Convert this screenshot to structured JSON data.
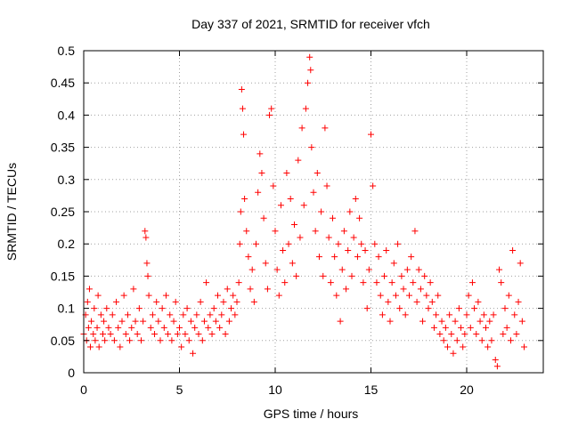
{
  "chart_data": {
    "type": "scatter",
    "title": "Day 337 of 2021, SRMTID for receiver vfch",
    "xlabel": "GPS time / hours",
    "ylabel": "SRMTID / TECUs",
    "xlim": [
      0,
      24
    ],
    "ylim": [
      0,
      0.5
    ],
    "x_ticks": [
      0,
      5,
      10,
      15,
      20
    ],
    "x_tick_labels": [
      "0",
      "5",
      "10",
      "15",
      "20"
    ],
    "y_ticks": [
      0,
      0.05,
      0.1,
      0.15,
      0.2,
      0.25,
      0.3,
      0.35,
      0.4,
      0.45,
      0.5
    ],
    "y_tick_labels": [
      "0",
      "0.05",
      "0.1",
      "0.15",
      "0.2",
      "0.25",
      "0.3",
      "0.35",
      "0.4",
      "0.45",
      "0.5"
    ],
    "grid": true,
    "marker": "+",
    "color": "#ff0000",
    "series": [
      {
        "name": "SRMTID",
        "points": [
          [
            0.0,
            0.06
          ],
          [
            0.1,
            0.09
          ],
          [
            0.15,
            0.05
          ],
          [
            0.2,
            0.11
          ],
          [
            0.25,
            0.07
          ],
          [
            0.3,
            0.13
          ],
          [
            0.35,
            0.04
          ],
          [
            0.4,
            0.08
          ],
          [
            0.5,
            0.06
          ],
          [
            0.55,
            0.1
          ],
          [
            0.6,
            0.05
          ],
          [
            0.7,
            0.07
          ],
          [
            0.75,
            0.12
          ],
          [
            0.8,
            0.04
          ],
          [
            0.9,
            0.09
          ],
          [
            1.0,
            0.06
          ],
          [
            1.05,
            0.08
          ],
          [
            1.1,
            0.05
          ],
          [
            1.2,
            0.1
          ],
          [
            1.3,
            0.07
          ],
          [
            1.4,
            0.06
          ],
          [
            1.5,
            0.09
          ],
          [
            1.6,
            0.05
          ],
          [
            1.7,
            0.11
          ],
          [
            1.8,
            0.07
          ],
          [
            1.9,
            0.04
          ],
          [
            2.0,
            0.08
          ],
          [
            2.1,
            0.12
          ],
          [
            2.2,
            0.06
          ],
          [
            2.3,
            0.09
          ],
          [
            2.4,
            0.05
          ],
          [
            2.5,
            0.07
          ],
          [
            2.6,
            0.13
          ],
          [
            2.7,
            0.08
          ],
          [
            2.8,
            0.06
          ],
          [
            2.9,
            0.1
          ],
          [
            3.0,
            0.05
          ],
          [
            3.1,
            0.08
          ],
          [
            3.2,
            0.22
          ],
          [
            3.25,
            0.21
          ],
          [
            3.3,
            0.17
          ],
          [
            3.35,
            0.15
          ],
          [
            3.4,
            0.12
          ],
          [
            3.5,
            0.07
          ],
          [
            3.6,
            0.09
          ],
          [
            3.7,
            0.06
          ],
          [
            3.8,
            0.11
          ],
          [
            3.9,
            0.08
          ],
          [
            4.0,
            0.05
          ],
          [
            4.1,
            0.1
          ],
          [
            4.2,
            0.07
          ],
          [
            4.3,
            0.12
          ],
          [
            4.4,
            0.06
          ],
          [
            4.5,
            0.09
          ],
          [
            4.6,
            0.05
          ],
          [
            4.7,
            0.08
          ],
          [
            4.8,
            0.11
          ],
          [
            4.9,
            0.06
          ],
          [
            5.0,
            0.07
          ],
          [
            5.1,
            0.04
          ],
          [
            5.2,
            0.09
          ],
          [
            5.3,
            0.06
          ],
          [
            5.4,
            0.1
          ],
          [
            5.5,
            0.05
          ],
          [
            5.6,
            0.08
          ],
          [
            5.7,
            0.03
          ],
          [
            5.8,
            0.07
          ],
          [
            5.9,
            0.09
          ],
          [
            6.0,
            0.06
          ],
          [
            6.1,
            0.11
          ],
          [
            6.2,
            0.05
          ],
          [
            6.3,
            0.08
          ],
          [
            6.4,
            0.14
          ],
          [
            6.5,
            0.07
          ],
          [
            6.6,
            0.09
          ],
          [
            6.7,
            0.06
          ],
          [
            6.8,
            0.1
          ],
          [
            6.9,
            0.08
          ],
          [
            7.0,
            0.12
          ],
          [
            7.1,
            0.07
          ],
          [
            7.2,
            0.09
          ],
          [
            7.3,
            0.11
          ],
          [
            7.4,
            0.06
          ],
          [
            7.5,
            0.13
          ],
          [
            7.6,
            0.08
          ],
          [
            7.7,
            0.1
          ],
          [
            7.8,
            0.12
          ],
          [
            7.9,
            0.09
          ],
          [
            8.0,
            0.11
          ],
          [
            8.1,
            0.14
          ],
          [
            8.15,
            0.2
          ],
          [
            8.2,
            0.25
          ],
          [
            8.25,
            0.44
          ],
          [
            8.3,
            0.41
          ],
          [
            8.35,
            0.37
          ],
          [
            8.4,
            0.27
          ],
          [
            8.5,
            0.22
          ],
          [
            8.6,
            0.18
          ],
          [
            8.7,
            0.13
          ],
          [
            8.8,
            0.16
          ],
          [
            8.9,
            0.11
          ],
          [
            9.0,
            0.2
          ],
          [
            9.1,
            0.28
          ],
          [
            9.2,
            0.34
          ],
          [
            9.3,
            0.31
          ],
          [
            9.4,
            0.24
          ],
          [
            9.5,
            0.17
          ],
          [
            9.6,
            0.13
          ],
          [
            9.7,
            0.4
          ],
          [
            9.8,
            0.41
          ],
          [
            9.9,
            0.29
          ],
          [
            10.0,
            0.22
          ],
          [
            10.1,
            0.16
          ],
          [
            10.2,
            0.12
          ],
          [
            10.3,
            0.26
          ],
          [
            10.4,
            0.19
          ],
          [
            10.5,
            0.14
          ],
          [
            10.6,
            0.31
          ],
          [
            10.7,
            0.2
          ],
          [
            10.8,
            0.27
          ],
          [
            10.9,
            0.17
          ],
          [
            11.0,
            0.23
          ],
          [
            11.1,
            0.15
          ],
          [
            11.2,
            0.33
          ],
          [
            11.3,
            0.21
          ],
          [
            11.4,
            0.38
          ],
          [
            11.5,
            0.26
          ],
          [
            11.6,
            0.41
          ],
          [
            11.7,
            0.45
          ],
          [
            11.8,
            0.49
          ],
          [
            11.85,
            0.47
          ],
          [
            11.9,
            0.35
          ],
          [
            12.0,
            0.28
          ],
          [
            12.1,
            0.22
          ],
          [
            12.2,
            0.31
          ],
          [
            12.3,
            0.18
          ],
          [
            12.4,
            0.25
          ],
          [
            12.5,
            0.15
          ],
          [
            12.6,
            0.38
          ],
          [
            12.7,
            0.29
          ],
          [
            12.8,
            0.21
          ],
          [
            12.9,
            0.14
          ],
          [
            13.0,
            0.24
          ],
          [
            13.1,
            0.18
          ],
          [
            13.2,
            0.12
          ],
          [
            13.3,
            0.2
          ],
          [
            13.4,
            0.08
          ],
          [
            13.5,
            0.16
          ],
          [
            13.6,
            0.22
          ],
          [
            13.7,
            0.13
          ],
          [
            13.8,
            0.19
          ],
          [
            13.9,
            0.25
          ],
          [
            14.0,
            0.15
          ],
          [
            14.1,
            0.21
          ],
          [
            14.2,
            0.27
          ],
          [
            14.3,
            0.18
          ],
          [
            14.4,
            0.24
          ],
          [
            14.5,
            0.2
          ],
          [
            14.6,
            0.14
          ],
          [
            14.7,
            0.19
          ],
          [
            14.8,
            0.1
          ],
          [
            14.9,
            0.16
          ],
          [
            15.0,
            0.37
          ],
          [
            15.1,
            0.29
          ],
          [
            15.2,
            0.2
          ],
          [
            15.3,
            0.14
          ],
          [
            15.4,
            0.18
          ],
          [
            15.5,
            0.12
          ],
          [
            15.6,
            0.09
          ],
          [
            15.7,
            0.15
          ],
          [
            15.8,
            0.19
          ],
          [
            15.9,
            0.11
          ],
          [
            16.0,
            0.08
          ],
          [
            16.1,
            0.14
          ],
          [
            16.2,
            0.17
          ],
          [
            16.3,
            0.12
          ],
          [
            16.4,
            0.2
          ],
          [
            16.5,
            0.1
          ],
          [
            16.6,
            0.15
          ],
          [
            16.7,
            0.13
          ],
          [
            16.8,
            0.09
          ],
          [
            16.9,
            0.16
          ],
          [
            17.0,
            0.12
          ],
          [
            17.1,
            0.18
          ],
          [
            17.2,
            0.14
          ],
          [
            17.3,
            0.22
          ],
          [
            17.4,
            0.11
          ],
          [
            17.5,
            0.16
          ],
          [
            17.6,
            0.13
          ],
          [
            17.7,
            0.08
          ],
          [
            17.8,
            0.15
          ],
          [
            17.9,
            0.12
          ],
          [
            18.0,
            0.1
          ],
          [
            18.1,
            0.14
          ],
          [
            18.2,
            0.11
          ],
          [
            18.3,
            0.07
          ],
          [
            18.4,
            0.09
          ],
          [
            18.5,
            0.12
          ],
          [
            18.6,
            0.06
          ],
          [
            18.7,
            0.08
          ],
          [
            18.8,
            0.05
          ],
          [
            18.9,
            0.07
          ],
          [
            19.0,
            0.04
          ],
          [
            19.1,
            0.09
          ],
          [
            19.2,
            0.06
          ],
          [
            19.3,
            0.03
          ],
          [
            19.4,
            0.08
          ],
          [
            19.5,
            0.05
          ],
          [
            19.6,
            0.1
          ],
          [
            19.7,
            0.07
          ],
          [
            19.8,
            0.04
          ],
          [
            19.9,
            0.06
          ],
          [
            20.0,
            0.09
          ],
          [
            20.1,
            0.12
          ],
          [
            20.2,
            0.07
          ],
          [
            20.3,
            0.14
          ],
          [
            20.4,
            0.1
          ],
          [
            20.5,
            0.06
          ],
          [
            20.6,
            0.11
          ],
          [
            20.7,
            0.08
          ],
          [
            20.8,
            0.05
          ],
          [
            20.9,
            0.09
          ],
          [
            21.0,
            0.07
          ],
          [
            21.1,
            0.04
          ],
          [
            21.2,
            0.08
          ],
          [
            21.3,
            0.05
          ],
          [
            21.4,
            0.09
          ],
          [
            21.5,
            0.02
          ],
          [
            21.6,
            0.01
          ],
          [
            21.7,
            0.16
          ],
          [
            21.8,
            0.14
          ],
          [
            21.9,
            0.06
          ],
          [
            22.0,
            0.1
          ],
          [
            22.1,
            0.07
          ],
          [
            22.2,
            0.12
          ],
          [
            22.3,
            0.05
          ],
          [
            22.4,
            0.19
          ],
          [
            22.5,
            0.09
          ],
          [
            22.6,
            0.06
          ],
          [
            22.7,
            0.11
          ],
          [
            22.8,
            0.17
          ],
          [
            22.9,
            0.08
          ],
          [
            23.0,
            0.04
          ]
        ]
      }
    ]
  }
}
